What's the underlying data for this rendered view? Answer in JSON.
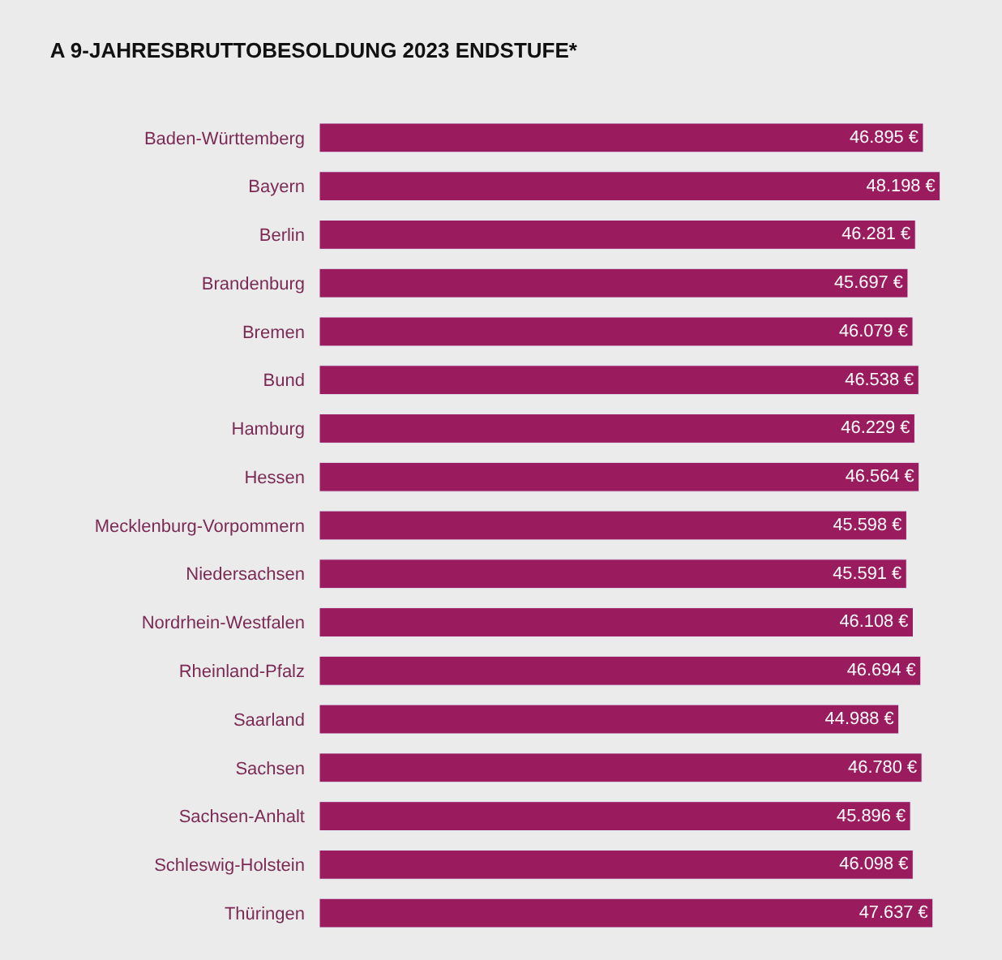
{
  "chart_data": {
    "type": "bar",
    "orientation": "horizontal",
    "title": "A 9-JAHRESBRUTTOBESOLDUNG 2023 ENDSTUFE*",
    "categories": [
      "Baden-Württemberg",
      "Bayern",
      "Berlin",
      "Brandenburg",
      "Bremen",
      "Bund",
      "Hamburg",
      "Hessen",
      "Mecklenburg-Vorpommern",
      "Niedersachsen",
      "Nordrhein-Westfalen",
      "Rheinland-Pfalz",
      "Saarland",
      "Sachsen",
      "Sachsen-Anhalt",
      "Schleswig-Holstein",
      "Thüringen"
    ],
    "values": [
      46895,
      48198,
      46281,
      45697,
      46079,
      46538,
      46229,
      46564,
      45598,
      45591,
      46108,
      46694,
      44988,
      46780,
      45896,
      46098,
      47637
    ],
    "value_labels": [
      "46.895 €",
      "48.198 €",
      "46.281 €",
      "45.697 €",
      "46.079 €",
      "46.538 €",
      "46.229 €",
      "46.564 €",
      "45.598 €",
      "45.591 €",
      "46.108 €",
      "46.694 €",
      "44.988 €",
      "46.780 €",
      "45.896 €",
      "46.098 €",
      "47.637 €"
    ],
    "color": "#9b1b5f",
    "tick_labels": "y"
  }
}
